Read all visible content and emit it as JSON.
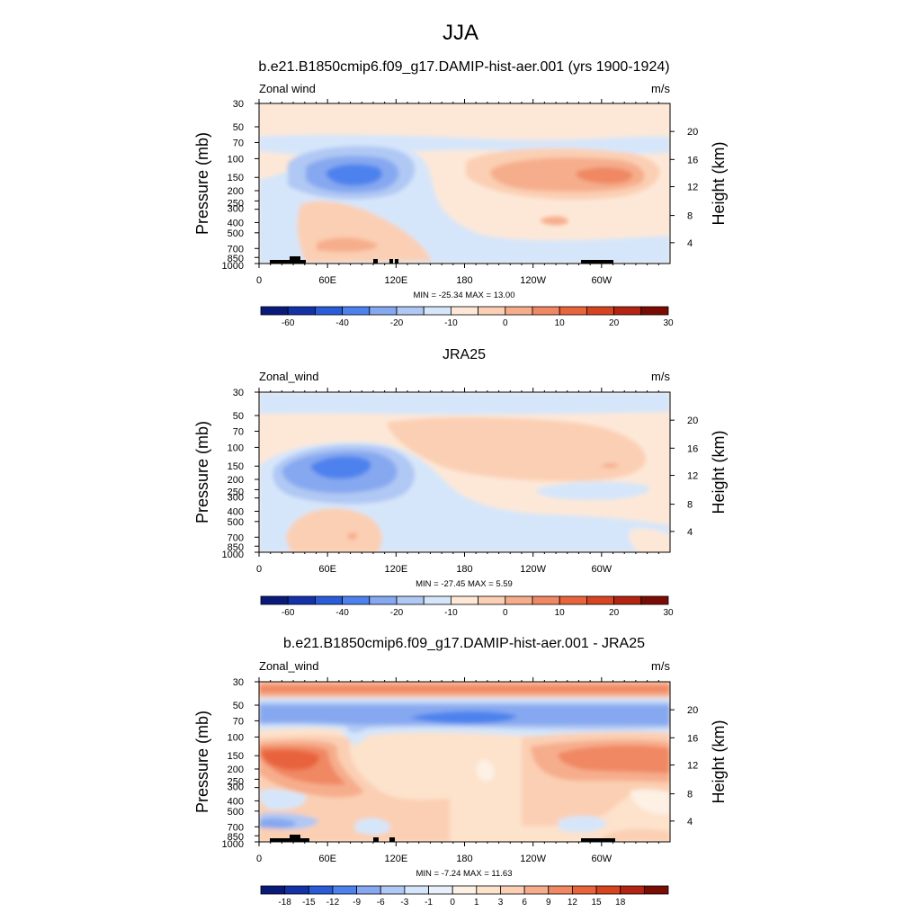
{
  "figure_title": "JJA",
  "chart_data": [
    {
      "type": "heatmap",
      "title": "b.e21.B1850cmip6.f09_g17.DAMIP-hist-aer.001 (yrs 1900-1924)",
      "variable_label": "Zonal wind",
      "units": "m/s",
      "xlabel": "",
      "ylabel": "Pressure (mb)",
      "ylabel_right": "Height (km)",
      "x_ticks": [
        "0",
        "60E",
        "120E",
        "180",
        "120W",
        "60W"
      ],
      "y_ticks": [
        "30",
        "50",
        "70",
        "100",
        "150",
        "200",
        "250",
        "300",
        "400",
        "500",
        "700",
        "850",
        "1000"
      ],
      "y_right_ticks": [
        "20",
        "16",
        "12",
        "8",
        "4"
      ],
      "ylim": [
        1000,
        30
      ],
      "y_scale": "log",
      "stats": "MIN = -25.34  MAX =  13.00",
      "min": -25.34,
      "max": 13.0,
      "colorbar_levels": [
        "-60",
        "-40",
        "-20",
        "-10",
        "0",
        "10",
        "20",
        "30"
      ],
      "features": [
        {
          "lon": 75,
          "p": 150,
          "value": -24
        },
        {
          "lon": 295,
          "p": 150,
          "value": 12
        },
        {
          "lon": 250,
          "p": 150,
          "value": 6
        },
        {
          "lon": 70,
          "p": 650,
          "value": 5
        }
      ]
    },
    {
      "type": "heatmap",
      "title": "JRA25",
      "variable_label": "Zonal_wind",
      "units": "m/s",
      "xlabel": "",
      "ylabel": "Pressure (mb)",
      "ylabel_right": "Height (km)",
      "x_ticks": [
        "0",
        "60E",
        "120E",
        "180",
        "120W",
        "60W"
      ],
      "y_ticks": [
        "30",
        "50",
        "70",
        "100",
        "150",
        "200",
        "250",
        "300",
        "400",
        "500",
        "700",
        "850",
        "1000"
      ],
      "y_right_ticks": [
        "20",
        "16",
        "12",
        "8",
        "4"
      ],
      "ylim": [
        1000,
        30
      ],
      "y_scale": "log",
      "stats": "MIN = -27.45  MAX =   5.59",
      "min": -27.45,
      "max": 5.59,
      "colorbar_levels": [
        "-60",
        "-40",
        "-20",
        "-10",
        "0",
        "10",
        "20",
        "30"
      ],
      "features": [
        {
          "lon": 75,
          "p": 150,
          "value": -26
        },
        {
          "lon": 210,
          "p": 100,
          "value": 5
        },
        {
          "lon": 280,
          "p": 150,
          "value": 5
        },
        {
          "lon": 60,
          "p": 650,
          "value": 3
        }
      ]
    },
    {
      "type": "heatmap",
      "title": "b.e21.B1850cmip6.f09_g17.DAMIP-hist-aer.001 - JRA25",
      "variable_label": "Zonal_wind",
      "units": "m/s",
      "xlabel": "",
      "ylabel": "Pressure (mb)",
      "ylabel_right": "Height (km)",
      "x_ticks": [
        "0",
        "60E",
        "120E",
        "180",
        "120W",
        "60W"
      ],
      "y_ticks": [
        "30",
        "50",
        "70",
        "100",
        "150",
        "200",
        "250",
        "300",
        "400",
        "500",
        "700",
        "850",
        "1000"
      ],
      "y_right_ticks": [
        "20",
        "16",
        "12",
        "8",
        "4"
      ],
      "ylim": [
        1000,
        30
      ],
      "y_scale": "log",
      "stats": "MIN =  -7.24  MAX =  11.63",
      "min": -7.24,
      "max": 11.63,
      "colorbar_levels": [
        "-18",
        "-15",
        "-12",
        "-9",
        "-6",
        "-3",
        "-1",
        "0",
        "1",
        "3",
        "6",
        "9",
        "12",
        "15",
        "18"
      ],
      "features": [
        {
          "lon": 170,
          "p": 60,
          "value": -7
        },
        {
          "lon": 25,
          "p": 160,
          "value": 11
        },
        {
          "lon": 300,
          "p": 160,
          "value": 9
        },
        {
          "lon": 110,
          "p": 30,
          "value": 3
        }
      ]
    }
  ],
  "palettes": {
    "wind": [
      "#0a1a7a",
      "#1432a8",
      "#2a5cd8",
      "#4d82ee",
      "#86a8f0",
      "#b0c8f4",
      "#d6e6fa",
      "#fde8d8",
      "#fbcfb3",
      "#f6ad8c",
      "#f08864",
      "#e8643c",
      "#d64420",
      "#b42412",
      "#7a0c04"
    ],
    "diff": [
      "#0a1a7a",
      "#1432a8",
      "#2a5cd8",
      "#4d82ee",
      "#86a8f0",
      "#b0c8f4",
      "#d6e6fa",
      "#e8f0fc",
      "#fdf0e4",
      "#fde2cc",
      "#fbcfb3",
      "#f6ad8c",
      "#f08864",
      "#e8643c",
      "#d64420",
      "#b42412",
      "#7a0c04"
    ]
  }
}
